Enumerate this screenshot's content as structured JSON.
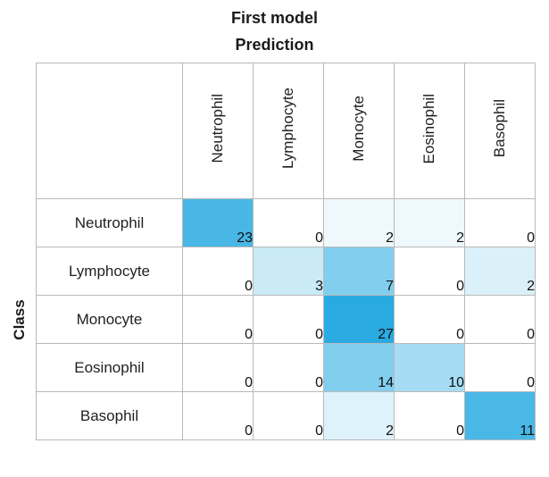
{
  "chart_data": {
    "type": "heatmap",
    "title": "First model",
    "x_axis_title": "Prediction",
    "y_axis_title": "Class",
    "col_labels": [
      "Neutrophil",
      "Lymphocyte",
      "Monocyte",
      "Eosinophil",
      "Basophil"
    ],
    "row_labels": [
      "Neutrophil",
      "Lymphocyte",
      "Monocyte",
      "Eosinophil",
      "Basophil"
    ],
    "matrix": [
      [
        23,
        0,
        2,
        2,
        0
      ],
      [
        0,
        3,
        7,
        0,
        2
      ],
      [
        0,
        0,
        27,
        0,
        0
      ],
      [
        0,
        0,
        14,
        10,
        0
      ],
      [
        0,
        0,
        2,
        0,
        11
      ]
    ],
    "accent_color": "#29ABE2",
    "min_color": "#FFFFFF",
    "shading_rule": "cell intensity proportional to value divided by row sum",
    "grid": "on",
    "grid_color": "#B9B9B9"
  }
}
